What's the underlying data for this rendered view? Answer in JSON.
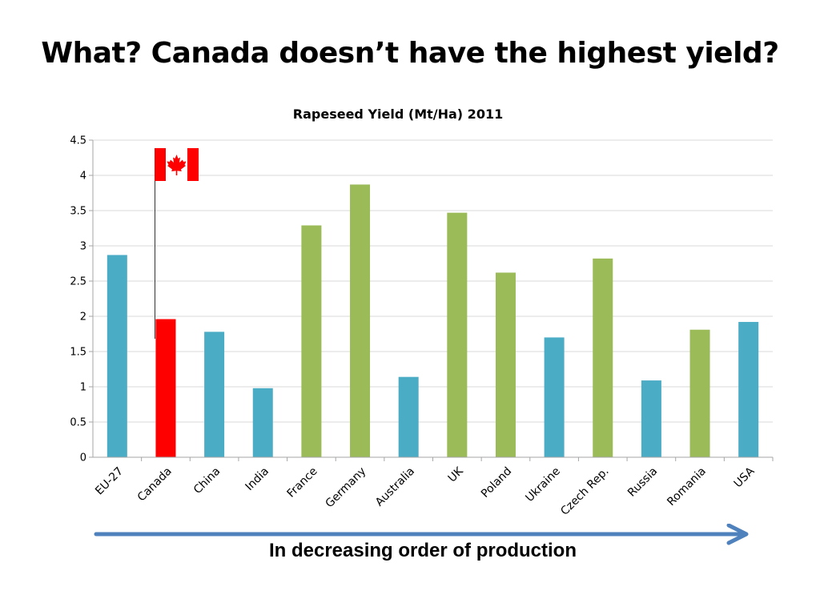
{
  "slide": {
    "title": "What? Canada doesn’t have the highest yield?",
    "caption": "In decreasing order of production"
  },
  "chart_data": {
    "type": "bar",
    "title": "Rapeseed Yield (Mt/Ha) 2011",
    "xlabel": "",
    "ylabel": "",
    "ylim": [
      0,
      4.5
    ],
    "yticks": [
      "0",
      "0.5",
      "1",
      "1.5",
      "2",
      "2.5",
      "3",
      "3.5",
      "4",
      "4.5"
    ],
    "grid": true,
    "categories": [
      "EU-27",
      "Canada",
      "China",
      "India",
      "France",
      "Germany",
      "Australia",
      "UK",
      "Poland",
      "Ukraine",
      "Czech Rep.",
      "Russia",
      "Romania",
      "USA"
    ],
    "values": [
      2.87,
      1.96,
      1.78,
      0.98,
      3.29,
      3.87,
      1.14,
      3.47,
      2.62,
      1.7,
      2.82,
      1.09,
      1.81,
      1.92
    ],
    "bar_colors": [
      "#4bacc6",
      "#ff0000",
      "#4bacc6",
      "#4bacc6",
      "#9bbb59",
      "#9bbb59",
      "#4bacc6",
      "#9bbb59",
      "#9bbb59",
      "#4bacc6",
      "#9bbb59",
      "#4bacc6",
      "#9bbb59",
      "#4bacc6"
    ]
  },
  "colors": {
    "arrow": "#4f81bd",
    "gridline": "#d9d9d9",
    "axis": "#a6a6a6"
  },
  "icons": {
    "flag": "canada-flag-icon",
    "arrow": "right-arrow-icon"
  }
}
